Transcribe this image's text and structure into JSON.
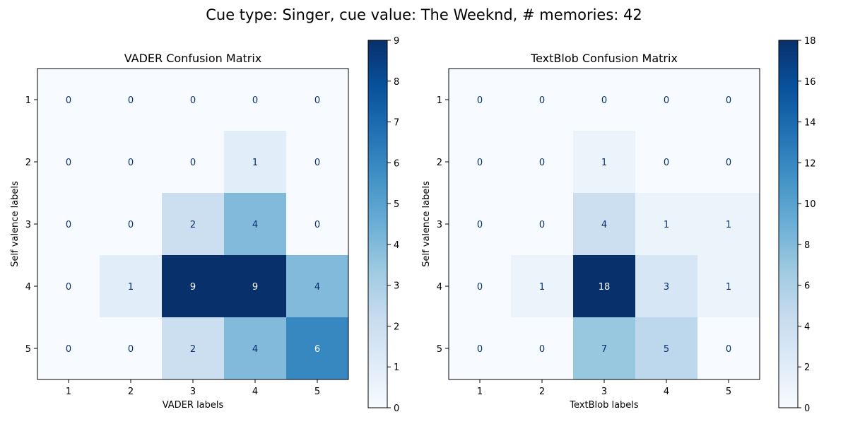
{
  "figure": {
    "suptitle": "Cue type: Singer, cue value: The Weeknd, # memories: 42"
  },
  "chart_data": [
    {
      "type": "heatmap",
      "title": "VADER Confusion Matrix",
      "xlabel": "VADER labels",
      "ylabel": "Self valence labels",
      "x_categories": [
        "1",
        "2",
        "3",
        "4",
        "5"
      ],
      "y_categories": [
        "1",
        "2",
        "3",
        "4",
        "5"
      ],
      "matrix": [
        [
          0,
          0,
          0,
          0,
          0
        ],
        [
          0,
          0,
          0,
          1,
          0
        ],
        [
          0,
          0,
          2,
          4,
          0
        ],
        [
          0,
          1,
          9,
          9,
          4
        ],
        [
          0,
          0,
          2,
          4,
          6
        ]
      ],
      "colormap": "Blues",
      "vmin": 0,
      "vmax": 9,
      "colorbar_ticks": [
        0,
        1,
        2,
        3,
        4,
        5,
        6,
        7,
        8,
        9
      ],
      "grid": false
    },
    {
      "type": "heatmap",
      "title": "TextBlob Confusion Matrix",
      "xlabel": "TextBlob labels",
      "ylabel": "Self valence labels",
      "x_categories": [
        "1",
        "2",
        "3",
        "4",
        "5"
      ],
      "y_categories": [
        "1",
        "2",
        "3",
        "4",
        "5"
      ],
      "matrix": [
        [
          0,
          0,
          0,
          0,
          0
        ],
        [
          0,
          0,
          1,
          0,
          0
        ],
        [
          0,
          0,
          4,
          1,
          1
        ],
        [
          0,
          1,
          18,
          3,
          1
        ],
        [
          0,
          0,
          7,
          5,
          0
        ]
      ],
      "colormap": "Blues",
      "vmin": 0,
      "vmax": 18,
      "colorbar_ticks": [
        0,
        2,
        4,
        6,
        8,
        10,
        12,
        14,
        16,
        18
      ],
      "grid": false
    }
  ]
}
